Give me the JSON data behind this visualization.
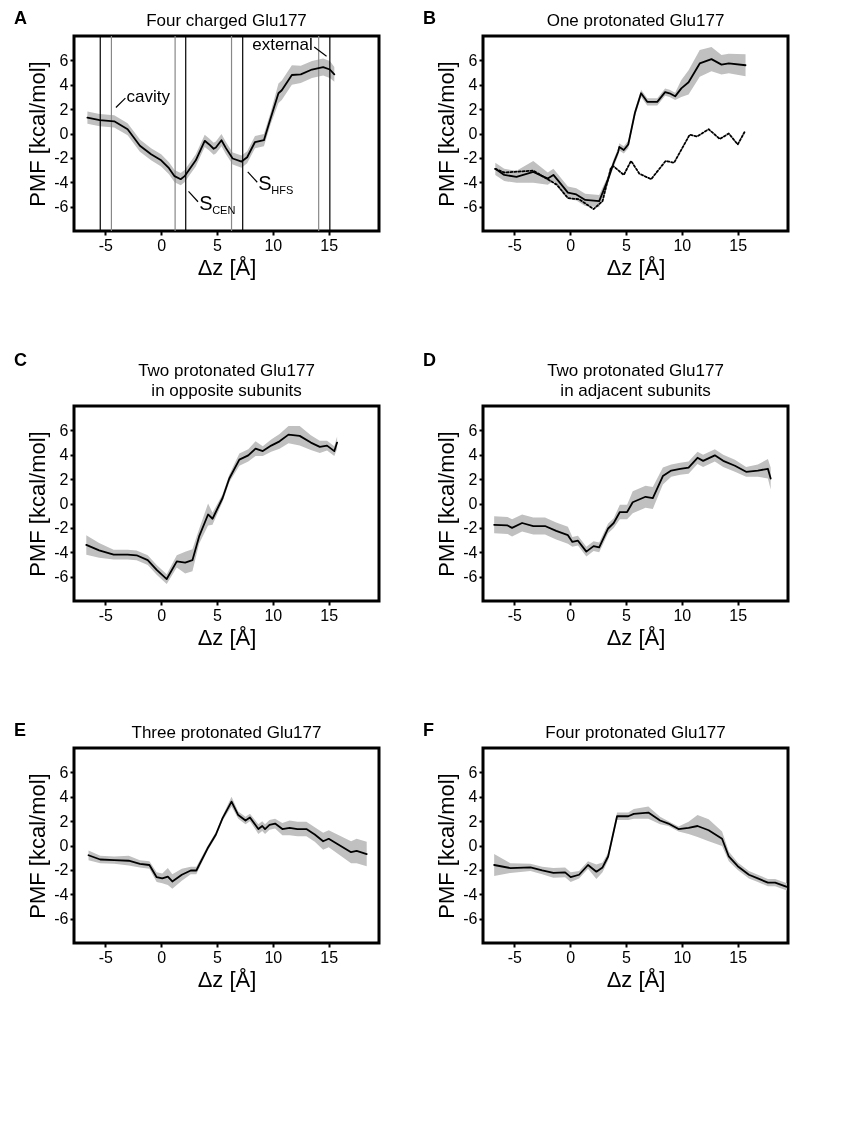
{
  "chart_data": [
    {
      "type": "line",
      "title": "Four charged Glu177",
      "xlabel": "Δz [Å]",
      "ylabel": "PMF [kcal/mol]",
      "xlim": [
        -7.8,
        19.5
      ],
      "ylim": [
        -8,
        8
      ],
      "xticks": [
        -5,
        0,
        5,
        10,
        15
      ],
      "yticks": [
        -6,
        -4,
        -2,
        0,
        2,
        4,
        6
      ],
      "annotations": [
        "A",
        {
          "text": "cavity",
          "x": -4.2,
          "y": 2.0
        },
        {
          "text": "external",
          "x": 15.0,
          "y": 6.2
        },
        {
          "text": "S$_{CEN}$",
          "x": 2.3,
          "y": -4.6
        },
        {
          "text": "S$_{HFS}$",
          "x": 7.6,
          "y": -3.0
        }
      ],
      "ref_lines": [
        {
          "axis": "x",
          "value": -5.45,
          "color": "#000000"
        },
        {
          "axis": "x",
          "value": -4.45,
          "color": "#888888"
        },
        {
          "axis": "x",
          "value": 1.25,
          "color": "#888888"
        },
        {
          "axis": "x",
          "value": 2.2,
          "color": "#000000"
        },
        {
          "axis": "x",
          "value": 6.3,
          "color": "#888888"
        },
        {
          "axis": "x",
          "value": 7.3,
          "color": "#000000"
        },
        {
          "axis": "x",
          "value": 14.1,
          "color": "#888888"
        },
        {
          "axis": "x",
          "value": 15.1,
          "color": "#000000"
        }
      ],
      "series": [
        {
          "color": "#000000",
          "line_style": "solid",
          "x": [
            -6.6,
            -5.5,
            -4.2,
            -3.0,
            -1.9,
            -0.9,
            0,
            0.7,
            1.2,
            1.75,
            2.1,
            2.6,
            3.1,
            3.9,
            4.3,
            4.7,
            4.9,
            5.4,
            5.8,
            6.4,
            7.2,
            7.7,
            8.4,
            9.2,
            9.8,
            10.5,
            10.8,
            11.7,
            12.5,
            13.5,
            14.5,
            15.1,
            15.5
          ],
          "values": [
            1.3,
            1.1,
            1.0,
            0.35,
            -1.0,
            -1.7,
            -2.2,
            -2.85,
            -3.5,
            -3.75,
            -3.5,
            -2.85,
            -2.2,
            -0.6,
            -0.9,
            -1.25,
            -1.15,
            -0.55,
            -1.2,
            -2.05,
            -2.3,
            -1.95,
            -0.7,
            -0.55,
            1.25,
            3.3,
            3.55,
            4.8,
            4.85,
            5.25,
            5.45,
            5.25,
            4.85
          ],
          "lower": [
            0.8,
            0.6,
            0.5,
            -0.15,
            -1.5,
            -2.2,
            -2.7,
            -3.35,
            -4.0,
            -4.25,
            -4.0,
            -3.35,
            -2.7,
            -1.1,
            -1.4,
            -1.75,
            -1.65,
            -1.05,
            -1.7,
            -2.55,
            -2.8,
            -2.45,
            -1.2,
            -1.05,
            0.75,
            2.5,
            2.75,
            4.0,
            4.15,
            4.55,
            4.75,
            4.55,
            4.25
          ],
          "upper": [
            1.8,
            1.6,
            1.5,
            0.85,
            -0.5,
            -1.2,
            -1.7,
            -2.35,
            -3.0,
            -3.25,
            -3.0,
            -2.35,
            -1.7,
            -0.1,
            -0.4,
            -0.75,
            -0.65,
            -0.05,
            -0.7,
            -1.55,
            -1.8,
            -1.45,
            -0.2,
            -0.05,
            1.75,
            4.1,
            4.35,
            5.6,
            5.55,
            5.95,
            6.15,
            5.95,
            5.45
          ]
        }
      ]
    },
    {
      "type": "line",
      "title": "One protonated Glu177",
      "xlabel": "Δz [Å]",
      "ylabel": "PMF [kcal/mol]",
      "xlim": [
        -7.8,
        19.5
      ],
      "ylim": [
        -8,
        8
      ],
      "xticks": [
        -5,
        0,
        5,
        10,
        15
      ],
      "yticks": [
        -6,
        -4,
        -2,
        0,
        2,
        4,
        6
      ],
      "annotations": [
        "B"
      ],
      "series": [
        {
          "color": "#000000",
          "line_style": "solid",
          "x": [
            -6.7,
            -5.9,
            -4.8,
            -3.3,
            -2.0,
            -1.5,
            -1.0,
            -0.2,
            0.55,
            1.35,
            2.6,
            3.4,
            3.9,
            4.3,
            4.4,
            4.8,
            5.2,
            5.8,
            6.35,
            6.9,
            7.8,
            8.5,
            8.9,
            9.4,
            9.95,
            10.6,
            11.6,
            12.65,
            13.55,
            14.2,
            15.7
          ],
          "values": [
            -2.9,
            -3.4,
            -3.55,
            -3.15,
            -3.7,
            -3.4,
            -3.95,
            -4.85,
            -5.0,
            -5.45,
            -5.55,
            -3.75,
            -2.4,
            -1.5,
            -1.1,
            -1.35,
            -0.9,
            1.7,
            3.3,
            2.6,
            2.6,
            3.4,
            3.3,
            3.05,
            3.7,
            4.2,
            5.75,
            6.1,
            5.65,
            5.75,
            5.6
          ],
          "lower": [
            -3.4,
            -3.9,
            -4.05,
            -4.05,
            -4.2,
            -3.9,
            -4.45,
            -5.35,
            -5.5,
            -5.95,
            -6.05,
            -4.05,
            -2.7,
            -1.8,
            -1.4,
            -1.65,
            -1.2,
            1.4,
            3.0,
            2.3,
            2.3,
            3.1,
            3.0,
            2.75,
            3.0,
            3.2,
            4.65,
            5.1,
            4.85,
            4.95,
            4.7
          ],
          "upper": [
            -2.4,
            -2.9,
            -3.05,
            -2.25,
            -3.2,
            -2.9,
            -3.45,
            -4.35,
            -4.5,
            -4.95,
            -5.05,
            -3.45,
            -2.1,
            -1.2,
            -0.8,
            -1.05,
            -0.6,
            2.0,
            3.6,
            2.9,
            2.9,
            3.7,
            3.6,
            3.35,
            4.4,
            5.2,
            6.85,
            7.1,
            6.45,
            6.55,
            6.5
          ]
        },
        {
          "color": "#000000",
          "line_style": "dotted",
          "x": [
            -6.7,
            -5.9,
            -3.3,
            -1.2,
            -0.2,
            0.8,
            2.1,
            2.9,
            3.65,
            3.9,
            4.8,
            5.45,
            6.2,
            7.25,
            8.55,
            9.3,
            10.7,
            11.35,
            12.4,
            13.4,
            14.2,
            15.0,
            15.6
          ],
          "values": [
            -2.9,
            -3.2,
            -3.05,
            -4.2,
            -5.3,
            -5.4,
            -6.2,
            -5.55,
            -2.8,
            -2.7,
            -3.4,
            -2.25,
            -3.3,
            -3.75,
            -2.25,
            -2.4,
            -0.1,
            -0.25,
            0.35,
            -0.45,
            0.0,
            -0.9,
            0.1
          ]
        }
      ]
    },
    {
      "type": "line",
      "title": "Two protonated Glu177\nin opposite subunits",
      "xlabel": "Δz [Å]",
      "ylabel": "PMF [kcal/mol]",
      "xlim": [
        -7.8,
        19.5
      ],
      "ylim": [
        -8,
        8
      ],
      "xticks": [
        -5,
        0,
        5,
        10,
        15
      ],
      "yticks": [
        -6,
        -4,
        -2,
        0,
        2,
        4,
        6
      ],
      "annotations": [
        "C"
      ],
      "series": [
        {
          "color": "#000000",
          "line_style": "solid",
          "x": [
            -6.7,
            -5.55,
            -4.25,
            -3.0,
            -2.2,
            -1.2,
            -0.4,
            0.5,
            1.4,
            2.15,
            2.8,
            3.4,
            4.2,
            4.6,
            5.5,
            6.1,
            7.0,
            7.8,
            8.45,
            9.1,
            9.85,
            10.6,
            11.4,
            12.4,
            13.4,
            14.2,
            14.85,
            15.5,
            15.75
          ],
          "values": [
            -3.4,
            -3.85,
            -4.2,
            -4.2,
            -4.25,
            -4.65,
            -5.45,
            -6.2,
            -4.75,
            -4.85,
            -4.65,
            -2.7,
            -0.9,
            -1.25,
            0.45,
            2.05,
            3.6,
            3.95,
            4.5,
            4.3,
            4.75,
            5.1,
            5.65,
            5.55,
            5.0,
            4.65,
            4.75,
            4.3,
            5.0
          ],
          "lower": [
            -4.2,
            -4.45,
            -4.6,
            -4.6,
            -4.65,
            -5.05,
            -5.85,
            -6.6,
            -5.25,
            -5.75,
            -5.55,
            -3.3,
            -1.8,
            -1.75,
            0.15,
            1.75,
            3.1,
            3.45,
            3.9,
            3.9,
            4.25,
            4.5,
            4.95,
            4.75,
            4.4,
            4.15,
            4.35,
            3.9,
            4.5
          ],
          "upper": [
            -2.6,
            -3.25,
            -3.8,
            -3.8,
            -3.85,
            -4.25,
            -5.05,
            -5.8,
            -4.25,
            -3.95,
            -3.75,
            -2.1,
            0.0,
            -0.75,
            0.75,
            2.35,
            4.1,
            4.45,
            5.1,
            4.7,
            5.25,
            5.7,
            6.35,
            6.35,
            5.6,
            5.15,
            5.15,
            4.7,
            5.5
          ]
        }
      ]
    },
    {
      "type": "line",
      "title": "Two protonated Glu177\nin adjacent subunits",
      "xlabel": "Δz [Å]",
      "ylabel": "PMF [kcal/mol]",
      "xlim": [
        -7.8,
        19.5
      ],
      "ylim": [
        -8,
        8
      ],
      "xticks": [
        -5,
        0,
        5,
        10,
        15
      ],
      "yticks": [
        -6,
        -4,
        -2,
        0,
        2,
        4,
        6
      ],
      "annotations": [
        "D"
      ],
      "series": [
        {
          "color": "#000000",
          "line_style": "solid",
          "x": [
            -6.8,
            -5.6,
            -5.2,
            -4.3,
            -3.3,
            -2.25,
            -1.25,
            -0.2,
            0.2,
            0.7,
            1.45,
            2.1,
            2.6,
            3.4,
            3.9,
            4.45,
            5.1,
            5.6,
            6.75,
            7.4,
            8.3,
            9.05,
            9.85,
            10.6,
            11.4,
            11.9,
            12.95,
            13.7,
            14.75,
            15.75,
            16.8,
            17.7,
            17.95
          ],
          "values": [
            -1.75,
            -1.8,
            -2.0,
            -1.6,
            -1.85,
            -1.85,
            -2.25,
            -2.6,
            -3.15,
            -3.05,
            -3.95,
            -3.5,
            -3.6,
            -2.05,
            -1.6,
            -0.7,
            -0.7,
            0.1,
            0.55,
            0.45,
            2.25,
            2.7,
            2.85,
            2.95,
            3.75,
            3.5,
            3.95,
            3.5,
            3.1,
            2.6,
            2.7,
            2.85,
            2.05
          ],
          "lower": [
            -2.45,
            -2.5,
            -2.7,
            -2.3,
            -2.55,
            -2.55,
            -2.95,
            -3.3,
            -3.55,
            -3.45,
            -4.35,
            -3.9,
            -4.0,
            -2.45,
            -2.0,
            -1.3,
            -1.3,
            -0.8,
            -0.35,
            -0.45,
            1.55,
            2.2,
            2.35,
            2.45,
            3.25,
            3.0,
            3.45,
            3.0,
            2.6,
            2.2,
            2.2,
            2.05,
            1.15
          ],
          "upper": [
            -1.05,
            -1.1,
            -1.3,
            -0.9,
            -1.15,
            -1.15,
            -1.55,
            -1.9,
            -2.75,
            -2.65,
            -3.55,
            -3.1,
            -3.2,
            -1.65,
            -1.2,
            -0.1,
            -0.1,
            1.0,
            1.45,
            1.35,
            2.95,
            3.2,
            3.35,
            3.45,
            4.25,
            4.0,
            4.45,
            4.0,
            3.6,
            3.0,
            3.2,
            3.65,
            2.95
          ]
        }
      ]
    },
    {
      "type": "line",
      "title": "Three protonated Glu177",
      "xlabel": "Δz [Å]",
      "ylabel": "PMF [kcal/mol]",
      "xlim": [
        -7.8,
        19.5
      ],
      "ylim": [
        -8,
        8
      ],
      "xticks": [
        -5,
        0,
        5,
        10,
        15
      ],
      "yticks": [
        -6,
        -4,
        -2,
        0,
        2,
        4,
        6
      ],
      "annotations": [
        "E"
      ],
      "series": [
        {
          "color": "#000000",
          "line_style": "solid",
          "x": [
            -6.5,
            -5.45,
            -4.2,
            -2.9,
            -1.9,
            -1.05,
            -0.4,
            0.1,
            0.6,
            1.0,
            1.85,
            2.65,
            3.15,
            4.15,
            4.9,
            5.5,
            6.3,
            6.9,
            7.55,
            7.95,
            8.7,
            9.05,
            9.3,
            9.7,
            10.2,
            10.85,
            11.5,
            12.2,
            13.0,
            13.75,
            14.5,
            15.0,
            16.0,
            17.0,
            17.5,
            18.4
          ],
          "values": [
            -0.8,
            -1.15,
            -1.2,
            -1.25,
            -1.5,
            -1.6,
            -2.6,
            -2.7,
            -2.55,
            -2.95,
            -2.4,
            -2.05,
            -2.05,
            -0.25,
            0.9,
            2.25,
            3.6,
            2.5,
            2.05,
            2.3,
            1.35,
            1.6,
            1.35,
            1.7,
            1.8,
            1.35,
            1.45,
            1.35,
            1.35,
            0.9,
            0.35,
            0.55,
            0.0,
            -0.55,
            -0.45,
            -0.7
          ],
          "lower": [
            -1.2,
            -1.45,
            -1.5,
            -1.65,
            -1.8,
            -1.9,
            -3.0,
            -3.1,
            -3.25,
            -3.55,
            -2.9,
            -2.35,
            -2.35,
            -0.45,
            0.7,
            2.05,
            3.2,
            2.2,
            1.75,
            2.0,
            0.95,
            1.2,
            0.95,
            1.3,
            1.4,
            0.85,
            0.85,
            0.75,
            0.75,
            0.3,
            -0.35,
            -0.15,
            -0.8,
            -1.45,
            -1.45,
            -1.7
          ],
          "upper": [
            -0.4,
            -0.85,
            -0.9,
            -0.85,
            -1.2,
            -1.3,
            -2.2,
            -2.3,
            -1.85,
            -2.35,
            -1.9,
            -1.75,
            -1.75,
            -0.05,
            1.1,
            2.45,
            4.0,
            2.8,
            2.35,
            2.6,
            1.75,
            2.0,
            1.75,
            2.1,
            2.2,
            1.85,
            2.05,
            1.95,
            1.95,
            1.5,
            1.05,
            1.25,
            0.8,
            0.35,
            0.55,
            0.3
          ]
        }
      ]
    },
    {
      "type": "line",
      "title": "Four protonated Glu177",
      "xlabel": "Δz [Å]",
      "ylabel": "PMF [kcal/mol]",
      "xlim": [
        -7.8,
        19.5
      ],
      "ylim": [
        -8,
        8
      ],
      "xticks": [
        -5,
        0,
        5,
        10,
        15
      ],
      "yticks": [
        -6,
        -4,
        -2,
        0,
        2,
        4,
        6
      ],
      "annotations": [
        "F"
      ],
      "series": [
        {
          "color": "#000000",
          "line_style": "solid",
          "x": [
            -6.8,
            -5.35,
            -3.55,
            -2.5,
            -1.5,
            -0.45,
            0.05,
            0.8,
            1.6,
            2.35,
            2.9,
            3.4,
            4.2,
            5.2,
            5.7,
            7.0,
            8.05,
            8.8,
            9.7,
            10.6,
            11.4,
            12.4,
            13.6,
            14.2,
            15.0,
            16.0,
            16.8,
            17.7,
            18.35,
            19.4
          ],
          "values": [
            -1.6,
            -1.85,
            -1.8,
            -2.05,
            -2.25,
            -2.2,
            -2.6,
            -2.4,
            -1.6,
            -2.15,
            -1.8,
            -0.9,
            2.4,
            2.4,
            2.6,
            2.7,
            2.05,
            1.8,
            1.35,
            1.45,
            1.6,
            1.25,
            0.55,
            -0.9,
            -1.7,
            -2.4,
            -2.7,
            -3.05,
            -3.05,
            -3.4
          ],
          "lower": [
            -2.5,
            -2.25,
            -2.1,
            -2.35,
            -2.65,
            -2.6,
            -3.0,
            -2.7,
            -1.9,
            -2.75,
            -2.2,
            -1.2,
            2.1,
            2.1,
            2.2,
            2.2,
            1.75,
            1.6,
            1.15,
            0.95,
            0.7,
            0.35,
            -0.05,
            -1.3,
            -2.0,
            -2.7,
            -3.0,
            -3.35,
            -3.35,
            -3.7
          ],
          "upper": [
            -0.7,
            -1.45,
            -1.5,
            -1.75,
            -1.85,
            -1.8,
            -2.2,
            -2.1,
            -1.3,
            -1.55,
            -1.4,
            -0.6,
            2.7,
            2.7,
            3.0,
            3.2,
            2.35,
            2.0,
            1.55,
            1.95,
            2.5,
            2.15,
            1.15,
            -0.5,
            -1.4,
            -2.1,
            -2.4,
            -2.75,
            -2.75,
            -3.1
          ]
        }
      ]
    }
  ]
}
